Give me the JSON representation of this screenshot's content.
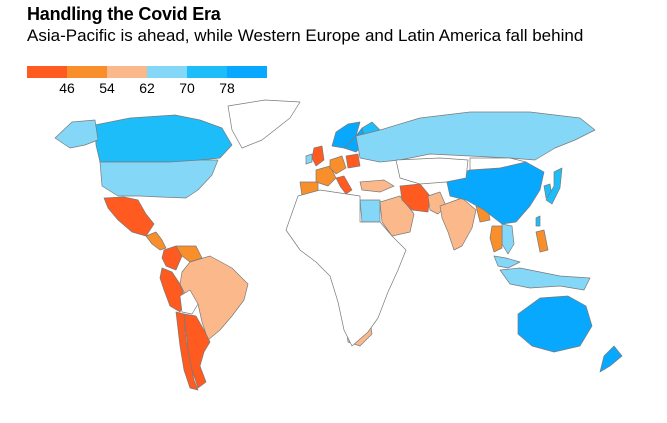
{
  "title": "Handling the Covid Era",
  "subtitle": "Asia-Pacific is ahead, while Western Europe and Latin America fall behind",
  "legend": {
    "colors": [
      "#ff5a1f",
      "#f98f2a",
      "#fbb98b",
      "#84d7f7",
      "#1cbdf9",
      "#08a8ff"
    ],
    "ticks": [
      "46",
      "54",
      "62",
      "70",
      "78"
    ]
  },
  "palette": {
    "none": "#ffffff",
    "stroke": "#7a7a7a"
  },
  "regions": [
    {
      "name": "Canada",
      "bin": 4
    },
    {
      "name": "Alaska",
      "bin": 3
    },
    {
      "name": "Greenland",
      "bin": -1
    },
    {
      "name": "United States",
      "bin": 3
    },
    {
      "name": "Mexico",
      "bin": 0
    },
    {
      "name": "Central America",
      "bin": 1
    },
    {
      "name": "Colombia",
      "bin": 0
    },
    {
      "name": "Venezuela",
      "bin": 1
    },
    {
      "name": "Peru",
      "bin": 0
    },
    {
      "name": "Brazil",
      "bin": 2
    },
    {
      "name": "Chile",
      "bin": 0
    },
    {
      "name": "Argentina",
      "bin": 0
    },
    {
      "name": "Bolivia",
      "bin": -1
    },
    {
      "name": "Norway",
      "bin": 5
    },
    {
      "name": "Sweden",
      "bin": 5
    },
    {
      "name": "Finland",
      "bin": 4
    },
    {
      "name": "UK",
      "bin": 0
    },
    {
      "name": "Ireland",
      "bin": 3
    },
    {
      "name": "France",
      "bin": 1
    },
    {
      "name": "Spain",
      "bin": 1
    },
    {
      "name": "Germany",
      "bin": 1
    },
    {
      "name": "Italy",
      "bin": 0
    },
    {
      "name": "Poland",
      "bin": 0
    },
    {
      "name": "Russia",
      "bin": 3
    },
    {
      "name": "Turkey",
      "bin": 2
    },
    {
      "name": "Egypt",
      "bin": 3
    },
    {
      "name": "Saudi Arabia",
      "bin": 2
    },
    {
      "name": "Iran",
      "bin": 0
    },
    {
      "name": "Pakistan",
      "bin": 2
    },
    {
      "name": "India",
      "bin": 2
    },
    {
      "name": "Bangladesh",
      "bin": 1
    },
    {
      "name": "China",
      "bin": 5
    },
    {
      "name": "South Korea",
      "bin": 4
    },
    {
      "name": "Japan",
      "bin": 4
    },
    {
      "name": "Taiwan",
      "bin": 4
    },
    {
      "name": "Vietnam",
      "bin": 3
    },
    {
      "name": "Thailand",
      "bin": 1
    },
    {
      "name": "Philippines",
      "bin": 1
    },
    {
      "name": "Malaysia",
      "bin": 3
    },
    {
      "name": "Indonesia",
      "bin": 3
    },
    {
      "name": "Nigeria",
      "bin": 1
    },
    {
      "name": "South Africa",
      "bin": 2
    },
    {
      "name": "Australia",
      "bin": 5
    },
    {
      "name": "New Zealand",
      "bin": 5
    },
    {
      "name": "Africa (other)",
      "bin": -1
    },
    {
      "name": "Central Asia",
      "bin": -1
    },
    {
      "name": "Mongolia",
      "bin": -1
    }
  ]
}
